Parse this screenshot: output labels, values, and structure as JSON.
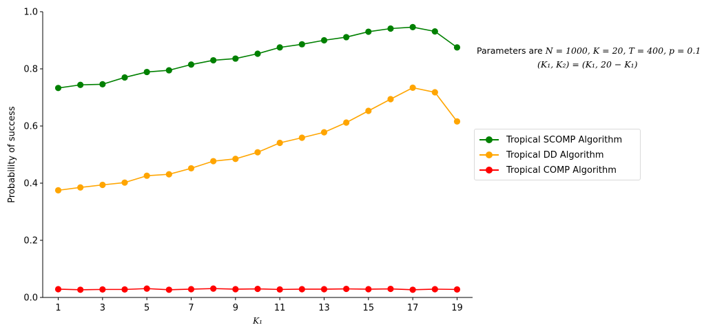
{
  "chart_data": {
    "type": "line",
    "title": "",
    "xlabel": "K₁",
    "ylabel": "Probability of success",
    "xlim": [
      0.3,
      19.7
    ],
    "ylim": [
      0.0,
      1.0
    ],
    "xticks": [
      1,
      3,
      5,
      7,
      9,
      11,
      13,
      15,
      17,
      19
    ],
    "yticks": [
      0.0,
      0.2,
      0.4,
      0.6,
      0.8,
      1.0
    ],
    "ytick_labels": [
      "0.0",
      "0.2",
      "0.4",
      "0.6",
      "0.8",
      "1.0"
    ],
    "grid": false,
    "legend_position": "right",
    "x": [
      1,
      2,
      3,
      4,
      5,
      6,
      7,
      8,
      9,
      10,
      11,
      12,
      13,
      14,
      15,
      16,
      17,
      18,
      19
    ],
    "series": [
      {
        "name": "Tropical SCOMP Algorithm",
        "color": "#008000",
        "values": [
          0.733,
          0.744,
          0.746,
          0.77,
          0.789,
          0.795,
          0.815,
          0.83,
          0.836,
          0.853,
          0.875,
          0.886,
          0.9,
          0.911,
          0.93,
          0.941,
          0.946,
          0.931,
          0.875
        ]
      },
      {
        "name": "Tropical DD Algorithm",
        "color": "#ffa500",
        "values": [
          0.375,
          0.385,
          0.394,
          0.402,
          0.426,
          0.431,
          0.452,
          0.477,
          0.485,
          0.508,
          0.541,
          0.559,
          0.578,
          0.612,
          0.653,
          0.694,
          0.734,
          0.718,
          0.616
        ]
      },
      {
        "name": "Tropical COMP Algorithm",
        "color": "#ff0000",
        "values": [
          0.029,
          0.027,
          0.028,
          0.028,
          0.031,
          0.027,
          0.029,
          0.031,
          0.029,
          0.03,
          0.028,
          0.029,
          0.029,
          0.03,
          0.029,
          0.03,
          0.027,
          0.029,
          0.028
        ]
      }
    ],
    "annotation": {
      "line1_prefix": "Parameters are ",
      "line1_math": "N = 1000, K = 20, T = 400, p = 0.1",
      "line2_math": "(K₁, K₂) = (K₁, 20 − K₁)"
    }
  }
}
